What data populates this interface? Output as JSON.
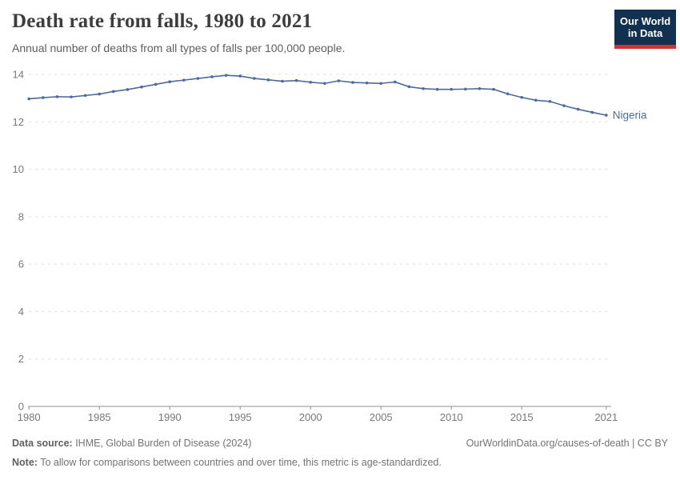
{
  "header": {
    "title": "Death rate from falls, 1980 to 2021",
    "subtitle": "Annual number of deaths from all types of falls per 100,000 people.",
    "logo": {
      "line1": "Our World",
      "line2": "in Data"
    }
  },
  "chart_data": {
    "type": "line",
    "title": "Death rate from falls, 1980 to 2021",
    "xlabel": "",
    "ylabel": "",
    "xlim": [
      1980,
      2021
    ],
    "ylim": [
      0,
      14
    ],
    "x_ticks": [
      1980,
      1985,
      1990,
      1995,
      2000,
      2005,
      2010,
      2015,
      2021
    ],
    "y_ticks": [
      0,
      2,
      4,
      6,
      8,
      10,
      12,
      14
    ],
    "grid": "horizontal-dashed",
    "legend_position": "end-of-line-label",
    "series": [
      {
        "name": "Nigeria",
        "color": "#4c6a9c",
        "x": [
          1980,
          1981,
          1982,
          1983,
          1984,
          1985,
          1986,
          1987,
          1988,
          1989,
          1990,
          1991,
          1992,
          1993,
          1994,
          1995,
          1996,
          1997,
          1998,
          1999,
          2000,
          2001,
          2002,
          2003,
          2004,
          2005,
          2006,
          2007,
          2008,
          2009,
          2010,
          2011,
          2012,
          2013,
          2014,
          2015,
          2016,
          2017,
          2018,
          2019,
          2020,
          2021
        ],
        "values": [
          12.97,
          13.02,
          13.06,
          13.05,
          13.11,
          13.17,
          13.28,
          13.36,
          13.47,
          13.58,
          13.69,
          13.76,
          13.83,
          13.9,
          13.96,
          13.93,
          13.83,
          13.77,
          13.71,
          13.74,
          13.67,
          13.62,
          13.73,
          13.66,
          13.64,
          13.62,
          13.68,
          13.48,
          13.4,
          13.37,
          13.37,
          13.38,
          13.4,
          13.37,
          13.18,
          13.03,
          12.91,
          12.86,
          12.68,
          12.53,
          12.4,
          12.28
        ]
      }
    ]
  },
  "footer": {
    "datasource_label": "Data source:",
    "datasource_text": " IHME, Global Burden of Disease (2024)",
    "credit": "OurWorldinData.org/causes-of-death | CC BY",
    "note_label": "Note:",
    "note_text": " To allow for comparisons between countries and over time, this metric is age-standardized."
  },
  "colors": {
    "line": "#4c6a9c",
    "logo_background": "#12304f",
    "logo_accent": "#d0342c",
    "gridline": "#dcdcdc",
    "axis": "#8f8f8f",
    "tick_text": "#787878"
  }
}
